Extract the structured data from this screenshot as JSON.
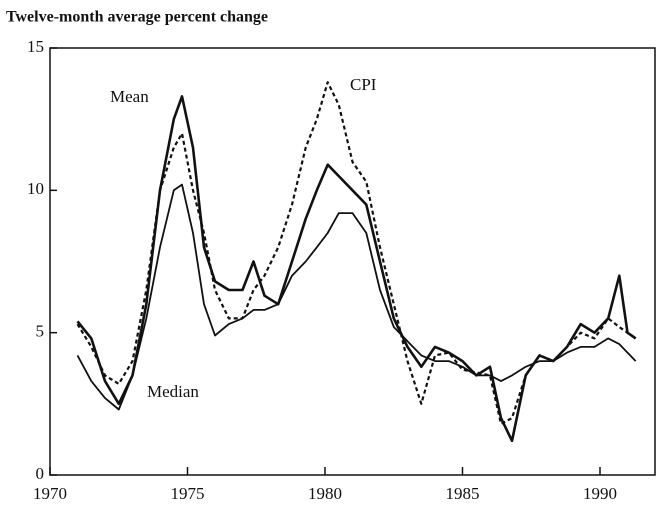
{
  "chart_data": {
    "type": "line",
    "y_label": "Twelve-month average percent change",
    "annotations": [
      "Mean",
      "CPI",
      "Median"
    ],
    "x": [
      1971,
      1971.5,
      1972,
      1972.5,
      1973,
      1973.5,
      1974,
      1974.5,
      1974.8,
      1975.2,
      1975.6,
      1976,
      1976.5,
      1977,
      1977.4,
      1977.8,
      1978.3,
      1978.8,
      1979.3,
      1979.7,
      1980.1,
      1980.5,
      1981,
      1981.5,
      1982,
      1982.5,
      1983,
      1983.5,
      1984,
      1984.5,
      1985,
      1985.5,
      1986,
      1986.4,
      1986.8,
      1987.3,
      1987.8,
      1988.3,
      1988.8,
      1989.3,
      1989.8,
      1990.3,
      1990.7,
      1991,
      1991.3
    ],
    "series": [
      {
        "name": "CPI",
        "color": "#111111",
        "style": "dotted",
        "values": [
          5.3,
          4.5,
          3.5,
          3.2,
          4.0,
          6.5,
          10.0,
          11.5,
          12.0,
          10.0,
          8.5,
          6.5,
          5.5,
          5.5,
          6.5,
          7.0,
          8.0,
          9.5,
          11.5,
          12.5,
          13.8,
          13.0,
          11.0,
          10.3,
          8.0,
          6.0,
          4.0,
          2.5,
          4.2,
          4.3,
          3.7,
          3.6,
          3.5,
          1.8,
          2.0,
          3.5,
          4.2,
          4.0,
          4.5,
          5.0,
          4.8,
          5.5,
          5.2,
          5.0,
          4.8
        ]
      },
      {
        "name": "Mean",
        "color": "#111111",
        "style": "thick",
        "values": [
          5.4,
          4.8,
          3.3,
          2.5,
          3.5,
          6.0,
          10.0,
          12.5,
          13.3,
          11.5,
          8.0,
          6.8,
          6.5,
          6.5,
          7.5,
          6.3,
          6.0,
          7.5,
          9.0,
          10.0,
          10.9,
          10.5,
          10.0,
          9.5,
          7.5,
          5.5,
          4.5,
          3.8,
          4.5,
          4.3,
          4.0,
          3.5,
          3.8,
          2.0,
          1.2,
          3.5,
          4.2,
          4.0,
          4.5,
          5.3,
          5.0,
          5.5,
          7.0,
          5.0,
          4.8
        ]
      },
      {
        "name": "Median",
        "color": "#111111",
        "style": "solid",
        "values": [
          4.2,
          3.3,
          2.7,
          2.3,
          3.5,
          5.5,
          8.0,
          10.0,
          10.2,
          8.5,
          6.0,
          4.9,
          5.3,
          5.5,
          5.8,
          5.8,
          6.0,
          7.0,
          7.5,
          8.0,
          8.5,
          9.2,
          9.2,
          8.5,
          6.5,
          5.2,
          4.7,
          4.2,
          4.0,
          4.0,
          3.8,
          3.5,
          3.5,
          3.3,
          3.5,
          3.8,
          4.0,
          4.0,
          4.3,
          4.5,
          4.5,
          4.8,
          4.6,
          4.3,
          4.0
        ]
      }
    ],
    "xlim": [
      1970,
      1992
    ],
    "xticks": [
      1970,
      1975,
      1980,
      1985,
      1990
    ],
    "ylim": [
      0,
      15
    ],
    "yticks": [
      0,
      5,
      10,
      15
    ],
    "grid": false
  }
}
